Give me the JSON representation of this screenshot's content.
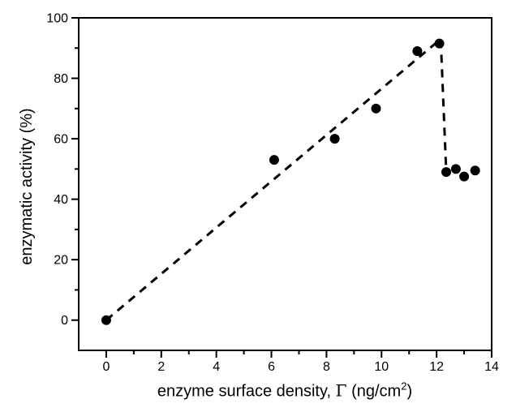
{
  "figure": {
    "background": "#ffffff",
    "foreground": "#000000"
  },
  "chart_data": {
    "type": "scatter",
    "title": "",
    "xlabel": "enzyme surface density, Γ (ng/cm²)",
    "xlabel_parts": {
      "prefix": "enzyme surface density, ",
      "symbol": "Γ",
      "unit_open": " (ng/cm",
      "unit_sup": "2",
      "unit_close": ")"
    },
    "ylabel": "enzymatic activity (%)",
    "xlim": [
      -1,
      14
    ],
    "ylim": [
      -10,
      100
    ],
    "x_major_ticks": [
      0,
      2,
      4,
      6,
      8,
      10,
      12,
      14
    ],
    "x_minor_ticks": [
      1,
      3,
      5,
      7,
      9,
      11,
      13
    ],
    "y_major_ticks": [
      0,
      20,
      40,
      60,
      80,
      100
    ],
    "y_minor_ticks": [
      10,
      30,
      50,
      70,
      90
    ],
    "grid": false,
    "legend": "none",
    "marker": "filled-circle",
    "marker_color": "#000000",
    "series": [
      {
        "name": "enzymatic activity",
        "points": [
          [
            0,
            0
          ],
          [
            6.1,
            53
          ],
          [
            8.3,
            60
          ],
          [
            9.8,
            70
          ],
          [
            11.3,
            89
          ],
          [
            12.1,
            91.5
          ],
          [
            12.35,
            49
          ],
          [
            12.7,
            50
          ],
          [
            13.0,
            47.5
          ],
          [
            13.4,
            49.5
          ]
        ]
      }
    ],
    "dashed_guide_line": {
      "style": "dashed",
      "color": "#000000",
      "points": [
        [
          0,
          0
        ],
        [
          12.15,
          93
        ],
        [
          12.35,
          49
        ]
      ]
    }
  }
}
